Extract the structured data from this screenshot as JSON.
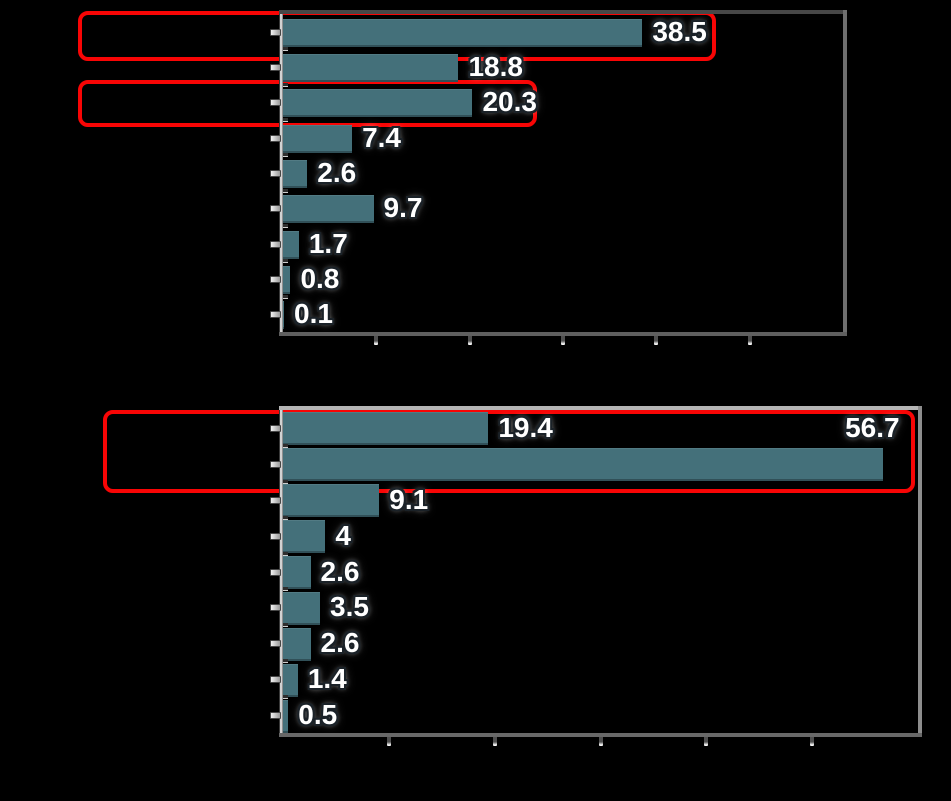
{
  "page": {
    "background_color": "#000000",
    "note": "category labels, tick labels and titles are not visible (rendered transparent/black)"
  },
  "chart_data": [
    {
      "type": "bar",
      "orientation": "horizontal",
      "title": "",
      "values": [
        38.5,
        18.8,
        20.3,
        7.4,
        2.6,
        9.7,
        1.7,
        0.8,
        0.1
      ],
      "data_labels": [
        "38.5",
        "18.8",
        "20.3",
        "7.4",
        "2.6",
        "9.7",
        "1.7",
        "0.8",
        "0.1"
      ],
      "xlim": [
        0,
        60
      ],
      "xticks": [
        10,
        20,
        30,
        40,
        50
      ],
      "tick_labels_visible": false,
      "grid": false,
      "legend": "none",
      "bar_color": "#44707a",
      "label_overrides": {}
    },
    {
      "type": "bar",
      "orientation": "horizontal",
      "title": "",
      "values": [
        19.4,
        56.7,
        9.1,
        4,
        2.6,
        3.5,
        2.6,
        1.4,
        0.5
      ],
      "data_labels": [
        "19.4",
        "56.7",
        "9.1",
        "4",
        "2.6",
        "3.5",
        "2.6",
        "1.4",
        "0.5"
      ],
      "xlim": [
        0,
        60
      ],
      "xticks": [
        10,
        20,
        30,
        40,
        50
      ],
      "tick_labels_visible": false,
      "grid": false,
      "legend": "none",
      "bar_color": "#44707a",
      "label_overrides": {
        "1": {
          "dx": -48,
          "dy": -36
        }
      }
    }
  ],
  "annotations": {
    "highlight_color": "#f80505",
    "boxes": [
      {
        "chart": 0,
        "rows": [
          0
        ],
        "name": "highlight-top-chart-bar-1"
      },
      {
        "chart": 0,
        "rows": [
          2
        ],
        "name": "highlight-top-chart-bar-3"
      },
      {
        "chart": 1,
        "rows": [
          0,
          1
        ],
        "name": "highlight-bottom-chart-bars-1-2"
      }
    ]
  }
}
